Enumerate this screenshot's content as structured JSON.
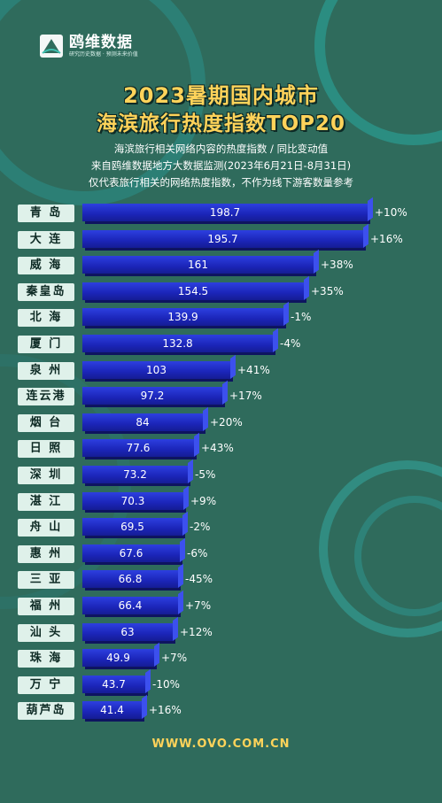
{
  "logo": {
    "name": "鸥维数据",
    "slogan": "研究历史数据 · 预测未来价值"
  },
  "header": {
    "title_line1": "2023暑期国内城市",
    "title_line2": "海滨旅行热度指数TOP20",
    "sub1": "海滨旅行相关网络内容的热度指数 / 同比变动值",
    "sub2": "来自鸥维数据地方大数据监测(2023年6月21日-8月31日)",
    "sub3": "仅代表旅行相关的网络热度指数，不作为线下游客数量参考"
  },
  "colors": {
    "background": "#2f6b5c",
    "bar": "#1b25b8",
    "title": "#ffd35a",
    "label_bg": "#dff1ea"
  },
  "chart_data": {
    "type": "bar",
    "orientation": "horizontal",
    "categories": [
      "青 岛",
      "大 连",
      "威 海",
      "秦皇岛",
      "北 海",
      "厦 门",
      "泉 州",
      "连云港",
      "烟 台",
      "日 照",
      "深 圳",
      "湛 江",
      "舟 山",
      "惠 州",
      "三 亚",
      "福 州",
      "汕 头",
      "珠 海",
      "万 宁",
      "葫芦岛"
    ],
    "values": [
      198.7,
      195.7,
      161,
      154.5,
      139.9,
      132.8,
      103,
      97.2,
      84,
      77.6,
      73.2,
      70.3,
      69.5,
      67.6,
      66.8,
      66.4,
      63,
      49.9,
      43.7,
      41.4
    ],
    "value_labels": [
      "198.7",
      "195.7",
      "161",
      "154.5",
      "139.9",
      "132.8",
      "103",
      "97.2",
      "84",
      "77.6",
      "73.2",
      "70.3",
      "69.5",
      "67.6",
      "66.8",
      "66.4",
      "63",
      "49.9",
      "43.7",
      "41.4"
    ],
    "changes": [
      "+10%",
      "+16%",
      "+38%",
      "+35%",
      "-1%",
      "-4%",
      "+41%",
      "+17%",
      "+20%",
      "+43%",
      "-5%",
      "+9%",
      "-2%",
      "-6%",
      "-45%",
      "+7%",
      "+12%",
      "+7%",
      "-10%",
      "+16%"
    ]
  },
  "footer": {
    "url": "WWW.OVO.COM.CN"
  }
}
